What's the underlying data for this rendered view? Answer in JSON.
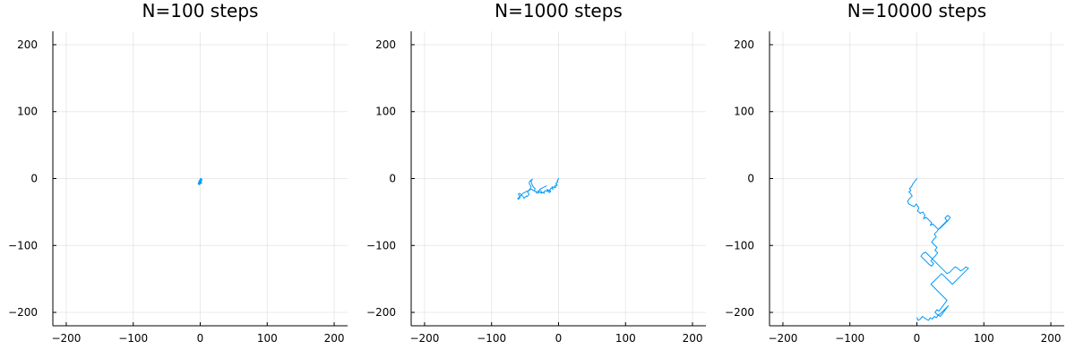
{
  "chart_data": [
    {
      "type": "line",
      "title": "N=100 steps",
      "xlabel": "",
      "ylabel": "",
      "xlim": [
        -220,
        220
      ],
      "ylim": [
        -220,
        220
      ],
      "xticks": [
        -200,
        -100,
        0,
        100,
        200
      ],
      "yticks": [
        -200,
        -100,
        0,
        100,
        200
      ],
      "xtick_labels": [
        "−200",
        "−100",
        "0",
        "100",
        "200"
      ],
      "ytick_labels": [
        "−200",
        "−100",
        "0",
        "100",
        "200"
      ],
      "grid": true,
      "legend": "none",
      "series": [
        {
          "color": "#009AFA",
          "x": [
            0,
            1,
            2,
            2,
            1,
            0,
            1,
            2,
            3,
            2,
            1,
            0,
            -1,
            -1,
            0,
            1,
            2,
            1,
            0,
            -1,
            -2,
            -2,
            -1,
            0,
            1,
            1,
            0,
            -1,
            -2,
            -3,
            -2,
            -1,
            0,
            1,
            2,
            2,
            1,
            0,
            -1,
            -2,
            -2,
            -1,
            0,
            -1,
            -2,
            -3,
            -3,
            -2,
            -1,
            -2
          ],
          "y": [
            0,
            0,
            -1,
            -2,
            -2,
            -3,
            -3,
            -2,
            -2,
            -1,
            -1,
            -2,
            -2,
            -3,
            -3,
            -4,
            -4,
            -5,
            -5,
            -4,
            -4,
            -5,
            -5,
            -6,
            -6,
            -7,
            -7,
            -6,
            -6,
            -7,
            -7,
            -8,
            -8,
            -7,
            -7,
            -6,
            -6,
            -5,
            -5,
            -6,
            -7,
            -7,
            -8,
            -8,
            -7,
            -7,
            -8,
            -8,
            -9,
            -9
          ]
        }
      ]
    },
    {
      "type": "line",
      "title": "N=1000 steps",
      "xlabel": "",
      "ylabel": "",
      "xlim": [
        -220,
        220
      ],
      "ylim": [
        -220,
        220
      ],
      "xticks": [
        -200,
        -100,
        0,
        100,
        200
      ],
      "yticks": [
        -200,
        -100,
        0,
        100,
        200
      ],
      "xtick_labels": [
        "−200",
        "−100",
        "0",
        "100",
        "200"
      ],
      "ytick_labels": [
        "−200",
        "−100",
        "0",
        "100",
        "200"
      ],
      "grid": true,
      "legend": "none",
      "series": [
        {
          "color": "#009AFA",
          "x": [
            0,
            -1,
            -2,
            -1,
            -3,
            -4,
            -2,
            -3,
            -5,
            -6,
            -4,
            -7,
            -9,
            -10,
            -8,
            -11,
            -13,
            -12,
            -15,
            -17,
            -16,
            -14,
            -12,
            -13,
            -16,
            -18,
            -20,
            -22,
            -21,
            -24,
            -26,
            -25,
            -28,
            -30,
            -29,
            -32,
            -34,
            -36,
            -35,
            -38,
            -40,
            -41,
            -39,
            -42,
            -44,
            -43,
            -41,
            -42,
            -45,
            -46,
            -44,
            -45,
            -47,
            -48,
            -50,
            -52,
            -51,
            -53,
            -55,
            -54,
            -56,
            -58,
            -60,
            -59,
            -57,
            -58,
            -60,
            -61,
            -59,
            -57,
            -55,
            -53,
            -51,
            -49,
            -47,
            -45,
            -43,
            -41,
            -39,
            -37,
            -35,
            -33,
            -31,
            -29,
            -27,
            -28,
            -26,
            -24,
            -22,
            -20,
            -18
          ],
          "y": [
            0,
            -2,
            -3,
            -5,
            -6,
            -8,
            -9,
            -11,
            -10,
            -12,
            -13,
            -14,
            -12,
            -15,
            -16,
            -14,
            -17,
            -19,
            -18,
            -16,
            -19,
            -21,
            -20,
            -18,
            -17,
            -19,
            -18,
            -20,
            -22,
            -21,
            -19,
            -22,
            -20,
            -19,
            -21,
            -22,
            -20,
            -18,
            -15,
            -12,
            -8,
            -4,
            -1,
            -3,
            -6,
            -9,
            -12,
            -15,
            -18,
            -21,
            -23,
            -25,
            -27,
            -26,
            -28,
            -30,
            -29,
            -27,
            -25,
            -26,
            -24,
            -22,
            -23,
            -25,
            -27,
            -29,
            -31,
            -30,
            -28,
            -26,
            -24,
            -22,
            -21,
            -20,
            -19,
            -18,
            -17,
            -16,
            -17,
            -18,
            -19,
            -20,
            -19,
            -18,
            -17,
            -16,
            -15,
            -14,
            -13,
            -12,
            -11
          ]
        }
      ]
    },
    {
      "type": "line",
      "title": "N=10000 steps",
      "xlabel": "",
      "ylabel": "",
      "xlim": [
        -220,
        220
      ],
      "ylim": [
        -220,
        220
      ],
      "xticks": [
        -200,
        -100,
        0,
        100,
        200
      ],
      "yticks": [
        -200,
        -100,
        0,
        100,
        200
      ],
      "xtick_labels": [
        "−200",
        "−100",
        "0",
        "100",
        "200"
      ],
      "ytick_labels": [
        "−200",
        "−100",
        "0",
        "100",
        "200"
      ],
      "grid": true,
      "legend": "none",
      "series": [
        {
          "color": "#009AFA",
          "x": [
            0,
            -3,
            -6,
            -8,
            -11,
            -9,
            -12,
            -10,
            -7,
            -11,
            -14,
            -12,
            -8,
            -4,
            -1,
            3,
            1,
            5,
            9,
            12,
            10,
            14,
            18,
            22,
            20,
            24,
            28,
            32,
            35,
            39,
            43,
            47,
            50,
            46,
            42,
            45,
            41,
            37,
            33,
            30,
            26,
            29,
            25,
            22,
            26,
            30,
            27,
            31,
            28,
            24,
            21,
            25,
            22,
            18,
            14,
            10,
            6,
            9,
            13,
            17,
            21,
            25,
            29,
            33,
            37,
            41,
            45,
            49,
            53,
            57,
            61,
            65,
            69,
            73,
            77,
            73,
            69,
            65,
            61,
            57,
            53,
            49,
            45,
            41,
            37,
            33,
            29,
            25,
            21,
            25,
            29,
            33,
            37,
            41,
            45,
            42,
            39,
            36,
            33,
            30,
            27,
            31,
            35,
            39,
            43,
            47,
            44,
            41,
            38,
            35,
            32,
            29,
            26,
            23,
            20,
            17,
            14,
            11,
            8,
            5,
            2,
            0
          ],
          "y": [
            0,
            -4,
            -8,
            -12,
            -15,
            -18,
            -20,
            -22,
            -26,
            -30,
            -34,
            -38,
            -40,
            -42,
            -38,
            -44,
            -48,
            -52,
            -50,
            -55,
            -60,
            -58,
            -62,
            -66,
            -70,
            -68,
            -72,
            -76,
            -74,
            -70,
            -66,
            -62,
            -58,
            -55,
            -59,
            -63,
            -67,
            -71,
            -75,
            -79,
            -83,
            -87,
            -91,
            -95,
            -99,
            -103,
            -107,
            -111,
            -115,
            -119,
            -123,
            -127,
            -131,
            -128,
            -124,
            -120,
            -116,
            -112,
            -110,
            -114,
            -118,
            -122,
            -126,
            -130,
            -134,
            -138,
            -142,
            -140,
            -136,
            -132,
            -134,
            -138,
            -136,
            -132,
            -134,
            -138,
            -142,
            -146,
            -150,
            -154,
            -158,
            -154,
            -150,
            -146,
            -142,
            -146,
            -150,
            -154,
            -158,
            -162,
            -166,
            -170,
            -174,
            -178,
            -182,
            -186,
            -190,
            -194,
            -198,
            -196,
            -200,
            -204,
            -202,
            -198,
            -194,
            -190,
            -194,
            -198,
            -202,
            -206,
            -204,
            -208,
            -206,
            -210,
            -208,
            -212,
            -210,
            -208,
            -206,
            -210,
            -212,
            -208
          ]
        }
      ]
    }
  ]
}
